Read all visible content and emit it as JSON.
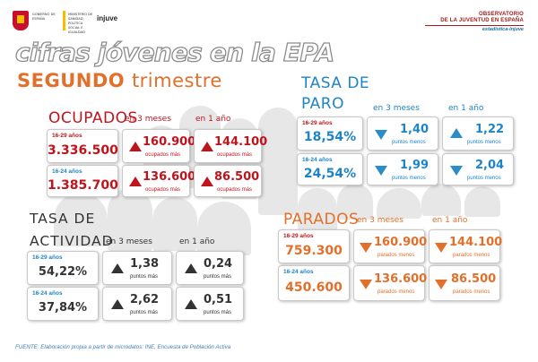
{
  "header": {
    "gov_text": "GOBIERNO DE ESPAÑA",
    "ministry_text": "MINISTERIO DE SANIDAD, POLÍTICA SOCIAL E IGUALDAD",
    "logo": "injuve",
    "observatory_line1": "OBSERVATORIO",
    "observatory_line2": "DE LA JUVENTUD EN ESPAÑA",
    "observatory_sub": "estadística-injuve"
  },
  "title": "cifras jóvenes en la EPA",
  "subtitle_strong": "SEGUNDO",
  "subtitle_rest": "trimestre",
  "ocupados": {
    "title": "OCUPADOS",
    "col_3m": "en 3 meses",
    "col_1y": "en 1 año",
    "rows": [
      {
        "age": "16-29 años",
        "value": "3.336.500",
        "m3": "160.900",
        "m3_caption": "ocupados más",
        "y1": "144.100",
        "y1_caption": "ocupados más"
      },
      {
        "age": "16-24 años",
        "value": "1.385.700",
        "m3": "136.600",
        "m3_caption": "ocupados más",
        "y1": "86.500",
        "y1_caption": "ocupados más"
      }
    ]
  },
  "paro": {
    "title_line1": "TASA DE",
    "title_line2": "PARO",
    "col_3m": "en 3 meses",
    "col_1y": "en 1 año",
    "rows": [
      {
        "age": "16-29 años",
        "value": "18,54%",
        "m3": "1,40",
        "m3_caption": "puntos menos",
        "y1": "1,22",
        "y1_caption": "puntos menos"
      },
      {
        "age": "16-24 años",
        "value": "24,54%",
        "m3": "1,99",
        "m3_caption": "puntos menos",
        "y1": "2,04",
        "y1_caption": "puntos menos"
      }
    ]
  },
  "actividad": {
    "title_line1": "TASA DE",
    "title_line2": "ACTIVIDAD",
    "col_3m": "en 3 meses",
    "col_1y": "en 1 año",
    "rows": [
      {
        "age": "16-29 años",
        "value": "54,22%",
        "m3": "1,38",
        "m3_caption": "puntos más",
        "y1": "0,24",
        "y1_caption": "puntos más"
      },
      {
        "age": "16-24 años",
        "value": "37,84%",
        "m3": "2,62",
        "m3_caption": "puntos más",
        "y1": "0,51",
        "y1_caption": "puntos más"
      }
    ]
  },
  "parados": {
    "title": "PARADOS",
    "col_3m": "en 3 meses",
    "col_1y": "en 1 año",
    "rows": [
      {
        "age": "16-29 años",
        "value": "759.300",
        "m3": "160.900",
        "m3_caption": "parados menos",
        "y1": "144.100",
        "y1_caption": "parados menos"
      },
      {
        "age": "16-24 años",
        "value": "450.600",
        "m3": "136.600",
        "m3_caption": "parados menos",
        "y1": "86.500",
        "y1_caption": "parados menos"
      }
    ]
  },
  "footer": "FUENTE: Elaboración propia a partir de microdatos: INE, Encuesta de Población Activa",
  "colors": {
    "red": "#c0141c",
    "blue": "#1d85c7",
    "orange": "#e2702a",
    "dark": "#333333",
    "arrow_red": "#c0141c",
    "arrow_blue": "#2a8cc8",
    "arrow_orange": "#e2702a",
    "arrow_dark": "#333333"
  }
}
